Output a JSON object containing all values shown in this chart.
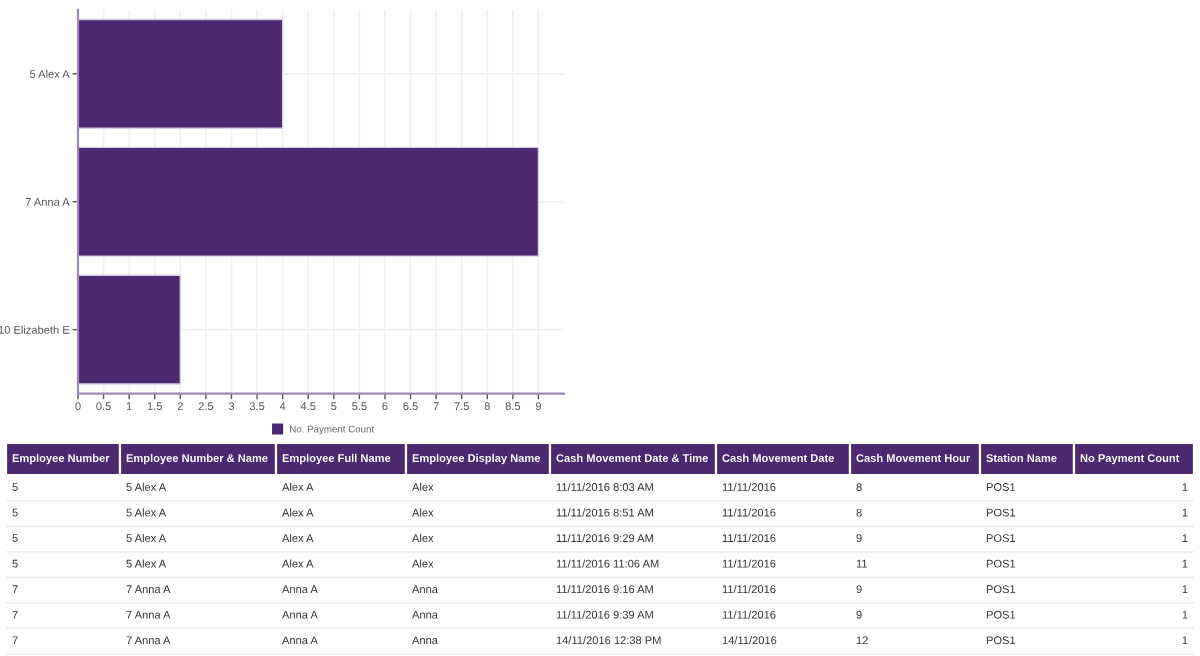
{
  "chart_data": [
    {
      "type": "bar",
      "orientation": "horizontal",
      "categories": [
        "5 Alex A",
        "7 Anna A",
        "10 Elizabeth E"
      ],
      "series": [
        {
          "name": "No. Payment Count",
          "color": "#4b2870",
          "values": [
            4,
            9,
            2
          ]
        }
      ],
      "xlim": [
        0,
        9.5
      ],
      "xticks": [
        0,
        0.5,
        1,
        1.5,
        2,
        2.5,
        3,
        3.5,
        4,
        4.5,
        5,
        5.5,
        6,
        6.5,
        7,
        7.5,
        8,
        8.5,
        9
      ],
      "grid": true,
      "legend": "bottom"
    },
    {
      "type": "other",
      "categories": [
        "Employee Number",
        "Employee Number & Name",
        "Employee Full Name",
        "Employee Display Name",
        "Cash Movement Date & Time",
        "Cash Movement Date",
        "Cash Movement Hour",
        "Station Name",
        "No Payment Count"
      ],
      "cell_labels": [
        [
          "5",
          "5 Alex A",
          "Alex A",
          "Alex",
          "11/11/2016 8:03 AM",
          "11/11/2016",
          "8",
          "POS1",
          "1"
        ],
        [
          "5",
          "5 Alex A",
          "Alex A",
          "Alex",
          "11/11/2016 8:51 AM",
          "11/11/2016",
          "8",
          "POS1",
          "1"
        ],
        [
          "5",
          "5 Alex A",
          "Alex A",
          "Alex",
          "11/11/2016 9:29 AM",
          "11/11/2016",
          "9",
          "POS1",
          "1"
        ],
        [
          "5",
          "5 Alex A",
          "Alex A",
          "Alex",
          "11/11/2016 11:06 AM",
          "11/11/2016",
          "11",
          "POS1",
          "1"
        ],
        [
          "7",
          "7 Anna A",
          "Anna A",
          "Anna",
          "11/11/2016 9:16 AM",
          "11/11/2016",
          "9",
          "POS1",
          "1"
        ],
        [
          "7",
          "7 Anna A",
          "Anna A",
          "Anna",
          "11/11/2016 9:39 AM",
          "11/11/2016",
          "9",
          "POS1",
          "1"
        ],
        [
          "7",
          "7 Anna A",
          "Anna A",
          "Anna",
          "14/11/2016 12:38 PM",
          "14/11/2016",
          "12",
          "POS1",
          "1"
        ]
      ],
      "color": "#4b2870"
    }
  ]
}
